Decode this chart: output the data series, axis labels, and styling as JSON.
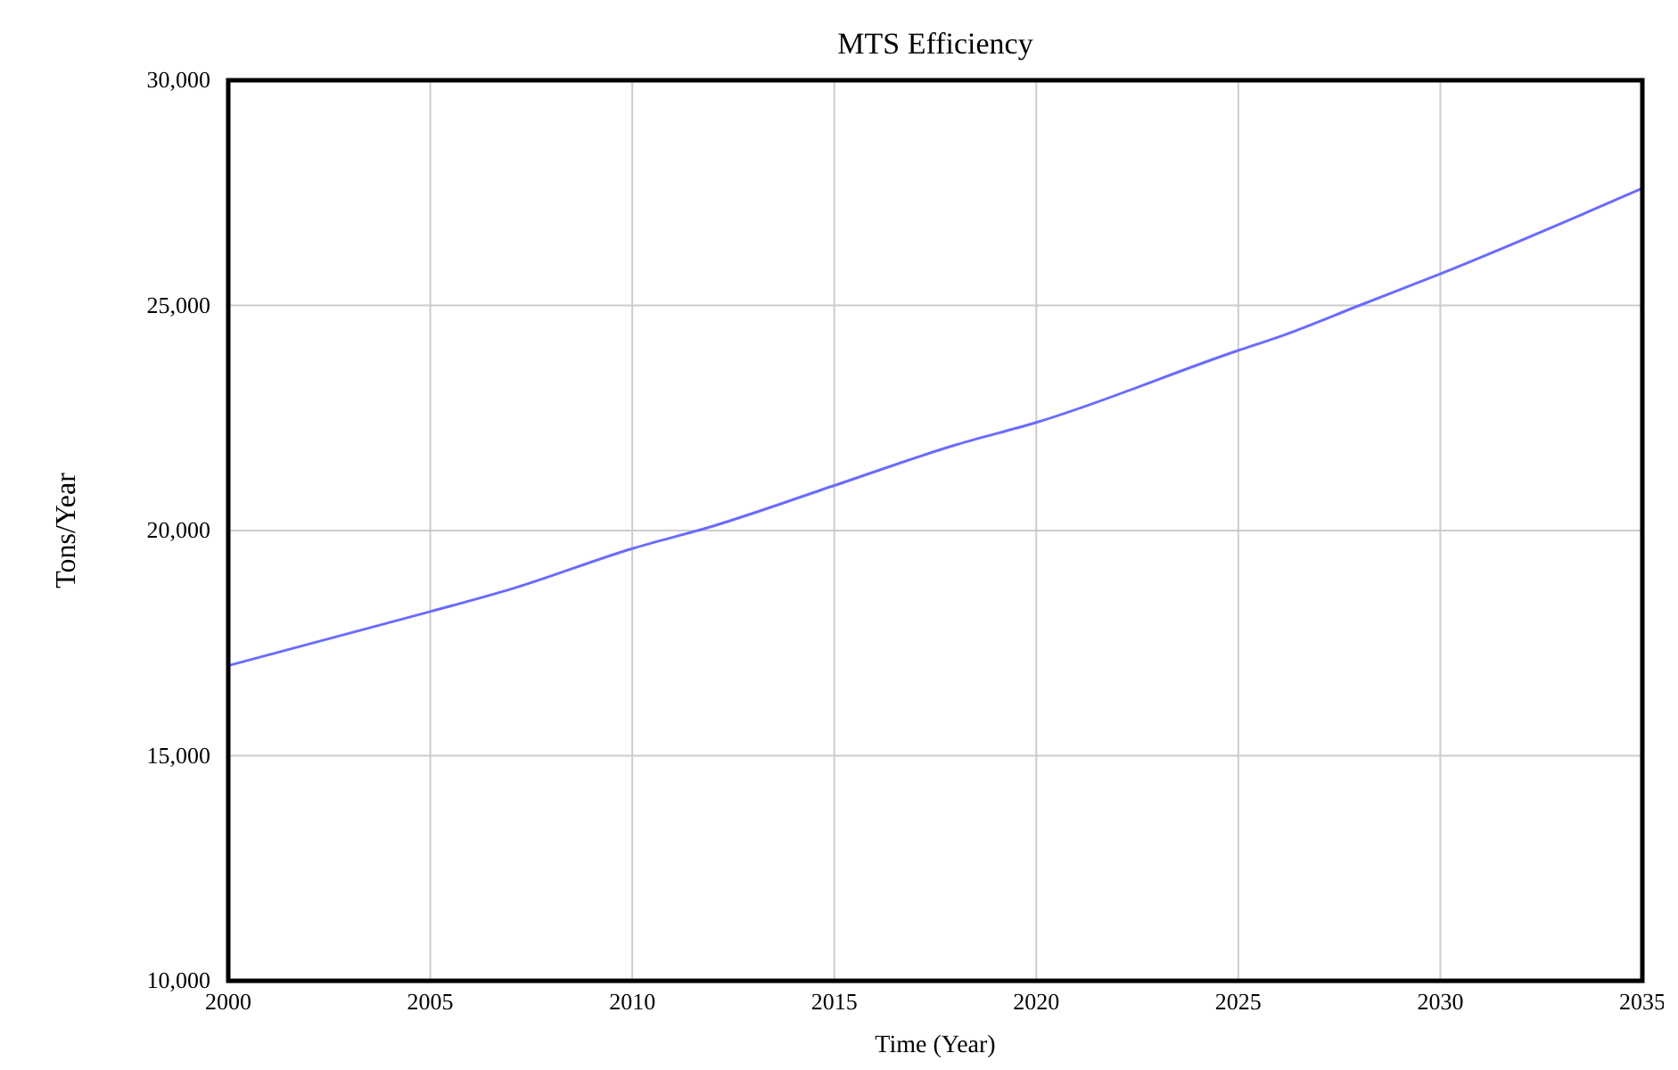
{
  "chart_data": {
    "type": "line",
    "title": "MTS Efficiency",
    "xlabel": "Time (Year)",
    "ylabel": "Tons/Year",
    "x": [
      2000,
      2005,
      2007,
      2010,
      2012,
      2015,
      2018,
      2020,
      2025,
      2026,
      2028,
      2030,
      2035
    ],
    "series": [
      {
        "color": "#6b6bff",
        "values": [
          17000,
          18200,
          18700,
          19600,
          20100,
          21000,
          21900,
          22400,
          24000,
          24300,
          25000,
          25700,
          27600
        ]
      }
    ],
    "xlim": [
      2000,
      2035
    ],
    "xticks": [
      2000,
      2005,
      2010,
      2015,
      2020,
      2025,
      2030,
      2035
    ],
    "ylim": [
      10000,
      30000
    ],
    "yticks": [
      {
        "value": 10000,
        "label": "10,000"
      },
      {
        "value": 15000,
        "label": "15,000"
      },
      {
        "value": 20000,
        "label": "20,000"
      },
      {
        "value": 25000,
        "label": "25,000"
      },
      {
        "value": 30000,
        "label": "30,000"
      }
    ],
    "grid": true,
    "marker": "none",
    "line_style": "solid"
  }
}
